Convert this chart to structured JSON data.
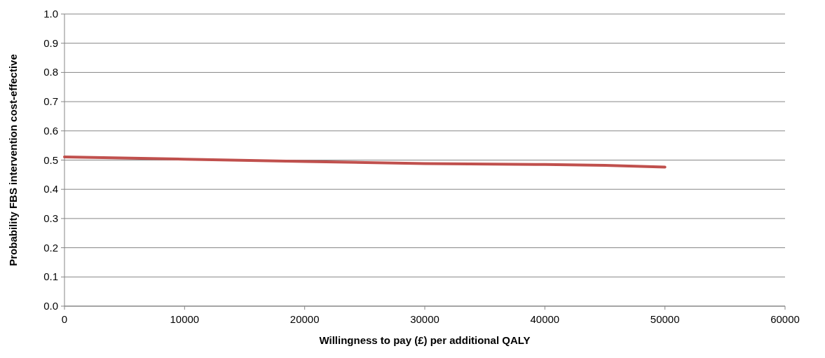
{
  "chart_data": {
    "type": "line",
    "xlabel": "Willingness to pay (£) per additional QALY",
    "ylabel": "Probability FBS intervention cost-effective",
    "x": [
      0,
      10000,
      20000,
      30000,
      40000,
      45000,
      50000
    ],
    "series": [
      {
        "color": "#c0504d",
        "values": [
          0.511,
          0.503,
          0.495,
          0.488,
          0.485,
          0.482,
          0.476
        ]
      }
    ],
    "xlim": [
      0,
      60000
    ],
    "xticks": [
      0,
      10000,
      20000,
      30000,
      40000,
      50000,
      60000
    ],
    "ylim": [
      0,
      1
    ],
    "yticks": [
      {
        "value": 0,
        "label": "0.0"
      },
      0.1,
      0.2,
      0.3,
      0.4,
      0.5,
      0.6,
      0.7,
      0.8,
      0.9,
      {
        "value": 1,
        "label": "1.0"
      }
    ],
    "grid": "y",
    "marker": "none",
    "line_style": "solid"
  }
}
